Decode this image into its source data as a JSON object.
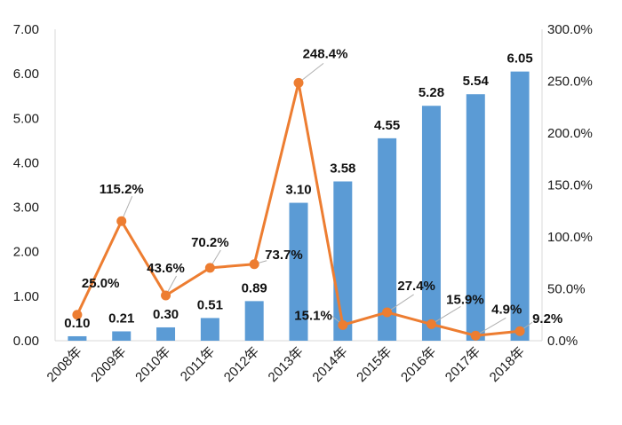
{
  "chart_data": {
    "type": "bar",
    "categories": [
      "2008年",
      "2009年",
      "2010年",
      "2011年",
      "2012年",
      "2013年",
      "2014年",
      "2015年",
      "2016年",
      "2017年",
      "2018年"
    ],
    "series": [
      {
        "type": "bar",
        "axis": "left",
        "values": [
          0.1,
          0.21,
          0.3,
          0.51,
          0.89,
          3.1,
          3.58,
          4.55,
          5.28,
          5.54,
          6.05
        ],
        "labels": [
          "0.10",
          "0.21",
          "0.30",
          "0.51",
          "0.89",
          "3.10",
          "3.58",
          "4.55",
          "5.28",
          "5.54",
          "6.05"
        ]
      },
      {
        "type": "line",
        "axis": "right",
        "values": [
          25.0,
          115.2,
          43.6,
          70.2,
          73.7,
          248.4,
          15.1,
          27.4,
          15.9,
          4.9,
          9.2
        ],
        "labels": [
          "25.0%",
          "115.2%",
          "43.6%",
          "70.2%",
          "73.7%",
          "248.4%",
          "15.1%",
          "27.4%",
          "15.9%",
          "4.9%",
          "9.2%"
        ]
      }
    ],
    "y_left": {
      "min": 0,
      "max": 7,
      "ticks": [
        "0.00",
        "1.00",
        "2.00",
        "3.00",
        "4.00",
        "5.00",
        "6.00",
        "7.00"
      ]
    },
    "y_right": {
      "min": 0,
      "max": 300,
      "ticks": [
        "0.0%",
        "50.0%",
        "100.0%",
        "150.0%",
        "200.0%",
        "250.0%",
        "300.0%"
      ]
    },
    "colors": {
      "bar": "#5b9bd5",
      "line": "#ed7d31",
      "axis": "#d9d9d9"
    },
    "grid": false
  }
}
